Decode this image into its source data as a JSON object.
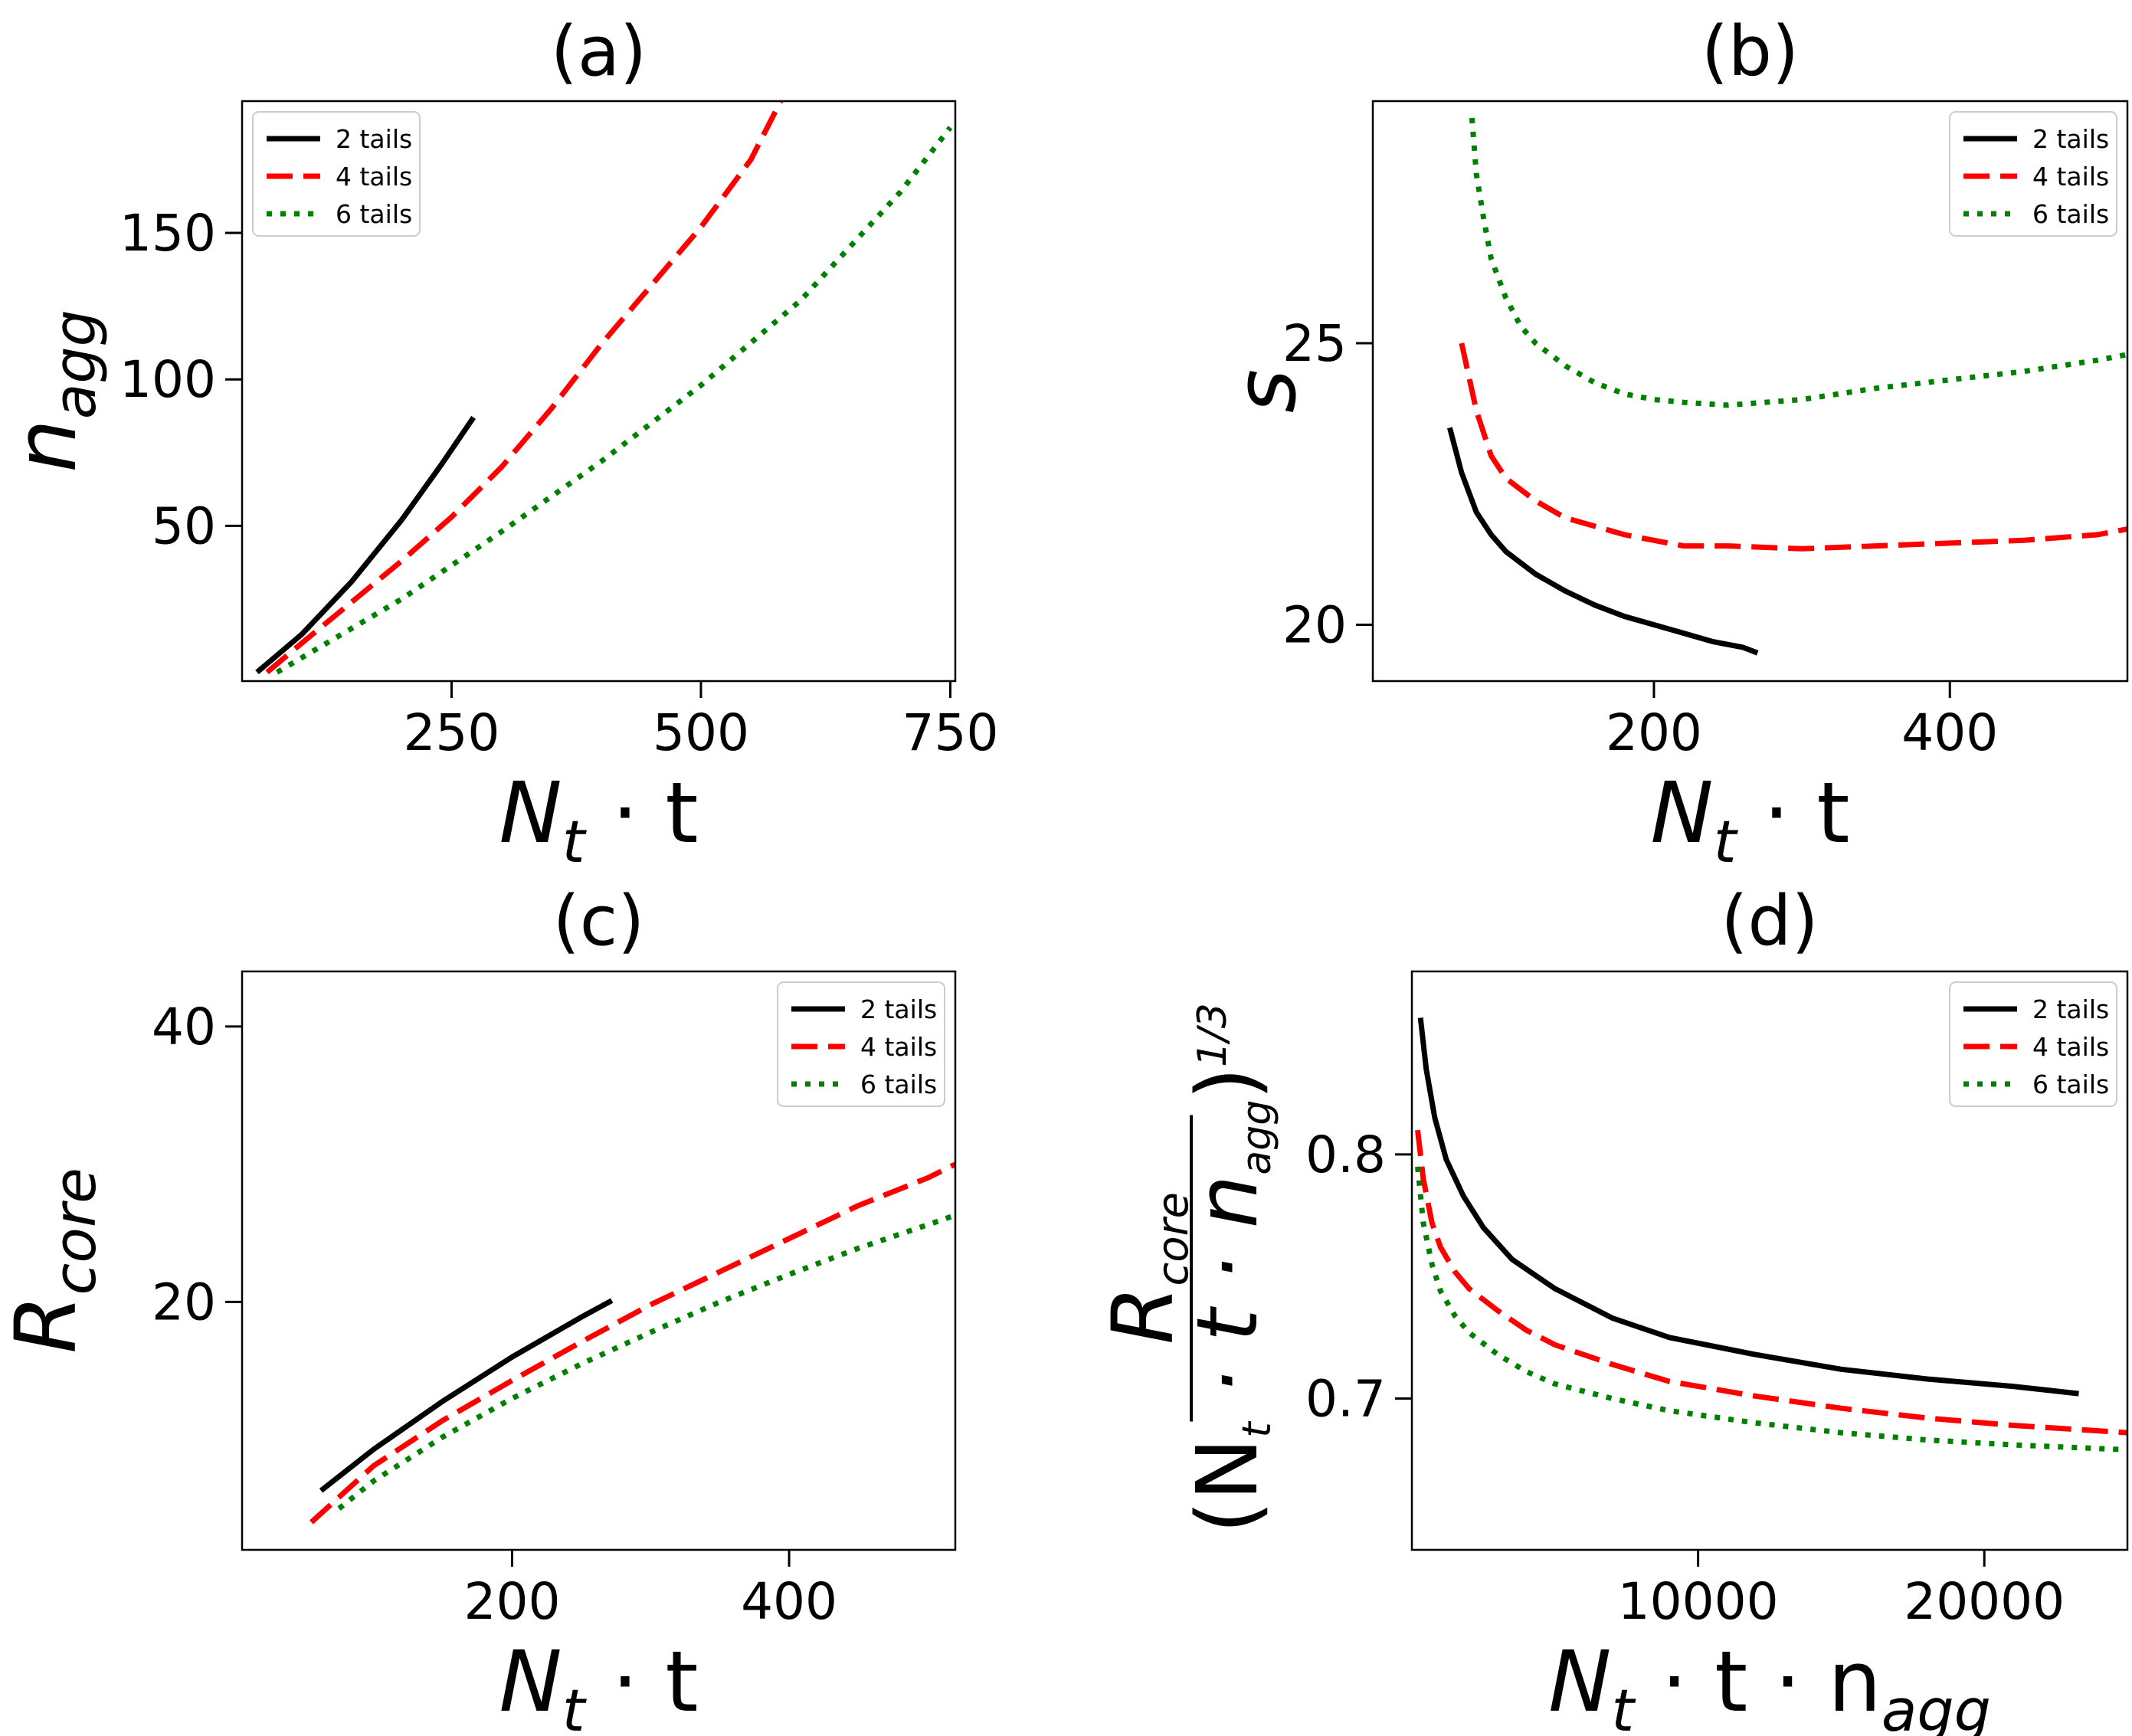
{
  "chart_data": [
    {
      "id": "a",
      "type": "line",
      "title": "(a)",
      "xlabel": {
        "main": "N",
        "sub": "t",
        "rest": " · t"
      },
      "ylabel": {
        "main": "n",
        "sub": "agg"
      },
      "xlim": [
        40,
        755
      ],
      "ylim": [
        -3,
        195
      ],
      "xticks": [
        250,
        500,
        750
      ],
      "xtick_labels": [
        "250",
        "500",
        "750"
      ],
      "yticks": [
        50,
        100,
        150
      ],
      "ytick_labels": [
        "50",
        "100",
        "150"
      ],
      "legend": {
        "position": "top-left"
      },
      "series": [
        {
          "name": "2 tails",
          "color": "#000000",
          "dash": "solid",
          "x": [
            55,
            100,
            150,
            200,
            240,
            272
          ],
          "y": [
            0,
            13,
            31,
            52,
            71,
            87
          ]
        },
        {
          "name": "4 tails",
          "color": "#ff0000",
          "dash": "dashed",
          "x": [
            65,
            100,
            150,
            200,
            250,
            300,
            350,
            400,
            450,
            500,
            550,
            580
          ],
          "y": [
            0,
            10,
            24,
            38,
            53,
            70,
            90,
            112,
            132,
            152,
            175,
            195
          ]
        },
        {
          "name": "6 tails",
          "color": "#008000",
          "dash": "dotted",
          "x": [
            75,
            150,
            200,
            300,
            400,
            500,
            600,
            700,
            750
          ],
          "y": [
            0,
            15,
            25,
            48,
            72,
            98,
            127,
            164,
            186
          ]
        }
      ]
    },
    {
      "id": "b",
      "type": "line",
      "title": "(b)",
      "xlabel": {
        "main": "N",
        "sub": "t",
        "rest": " · t"
      },
      "ylabel": {
        "main": "s",
        "sub": ""
      },
      "xlim": [
        10,
        520
      ],
      "ylim": [
        19.0,
        29.3
      ],
      "xticks": [
        200,
        400
      ],
      "xtick_labels": [
        "200",
        "400"
      ],
      "yticks": [
        20,
        25
      ],
      "ytick_labels": [
        "20",
        "25"
      ],
      "legend": {
        "position": "top-right"
      },
      "series": [
        {
          "name": "2 tails",
          "color": "#000000",
          "dash": "solid",
          "x": [
            62,
            70,
            80,
            90,
            100,
            120,
            140,
            160,
            180,
            200,
            220,
            240,
            260,
            270
          ],
          "y": [
            23.5,
            22.7,
            22.0,
            21.6,
            21.3,
            20.9,
            20.6,
            20.35,
            20.15,
            20.0,
            19.85,
            19.7,
            19.6,
            19.5
          ]
        },
        {
          "name": "4 tails",
          "color": "#ff0000",
          "dash": "dashed",
          "x": [
            70,
            80,
            90,
            100,
            120,
            140,
            160,
            180,
            200,
            220,
            250,
            300,
            350,
            400,
            450,
            500,
            520
          ],
          "y": [
            25.0,
            23.8,
            23.0,
            22.6,
            22.2,
            21.9,
            21.75,
            21.6,
            21.5,
            21.4,
            21.4,
            21.35,
            21.4,
            21.45,
            21.5,
            21.6,
            21.7
          ]
        },
        {
          "name": "6 tails",
          "color": "#008000",
          "dash": "dotted",
          "x": [
            77,
            80,
            85,
            90,
            100,
            110,
            120,
            140,
            160,
            180,
            200,
            220,
            250,
            300,
            350,
            400,
            450,
            500,
            520
          ],
          "y": [
            29.0,
            28.0,
            27.2,
            26.5,
            25.8,
            25.3,
            25.0,
            24.6,
            24.3,
            24.1,
            24.0,
            23.95,
            23.9,
            24.0,
            24.2,
            24.35,
            24.5,
            24.7,
            24.8
          ]
        }
      ]
    },
    {
      "id": "c",
      "type": "line",
      "title": "(c)",
      "xlabel": {
        "main": "N",
        "sub": "t",
        "rest": " · t"
      },
      "ylabel": {
        "main": "R",
        "sub": "core"
      },
      "xlim": [
        5,
        520
      ],
      "ylim": [
        2,
        44
      ],
      "xticks": [
        200,
        400
      ],
      "xtick_labels": [
        "200",
        "400"
      ],
      "yticks": [
        20,
        40
      ],
      "ytick_labels": [
        "20",
        "40"
      ],
      "legend": {
        "position": "top-right"
      },
      "series": [
        {
          "name": "2 tails",
          "color": "#000000",
          "dash": "solid",
          "x": [
            62,
            100,
            150,
            200,
            250,
            272
          ],
          "y": [
            6.3,
            9.3,
            12.8,
            16.0,
            18.9,
            20.1
          ]
        },
        {
          "name": "4 tails",
          "color": "#ff0000",
          "dash": "dashed",
          "x": [
            55,
            100,
            150,
            200,
            250,
            300,
            350,
            400,
            450,
            500,
            520
          ],
          "y": [
            4.0,
            8.1,
            11.4,
            14.3,
            17.1,
            19.8,
            22.2,
            24.6,
            27.0,
            29.0,
            30.0
          ]
        },
        {
          "name": "6 tails",
          "color": "#008000",
          "dash": "dotted",
          "x": [
            75,
            100,
            150,
            200,
            250,
            300,
            350,
            400,
            450,
            500,
            520
          ],
          "y": [
            5.0,
            7.0,
            10.2,
            13.0,
            15.5,
            17.8,
            20.0,
            22.0,
            23.9,
            25.6,
            26.3
          ]
        }
      ]
    },
    {
      "id": "d",
      "type": "line",
      "title": "(d)",
      "xlabel": {
        "main": "N",
        "sub": "t",
        "rest": " · t · n",
        "sub2": "agg"
      },
      "ylabel": {
        "num_main": "R",
        "num_sub": "core",
        "den": "(N",
        "den_sub": "t",
        "den_mid": " · t · n",
        "den_sub2": "agg",
        "den_end": ")",
        "power": "1/3"
      },
      "xlim": [
        0,
        25000
      ],
      "ylim": [
        0.638,
        0.875
      ],
      "xticks": [
        10000,
        20000
      ],
      "xtick_labels": [
        "10000",
        "20000"
      ],
      "yticks": [
        0.7,
        0.8
      ],
      "ytick_labels": [
        "0.7",
        "0.8"
      ],
      "legend": {
        "position": "top-right"
      },
      "series": [
        {
          "name": "2 tails",
          "color": "#000000",
          "dash": "solid",
          "x": [
            300,
            500,
            800,
            1200,
            1800,
            2500,
            3500,
            5000,
            7000,
            9000,
            12000,
            15000,
            18000,
            21000,
            23300
          ],
          "y": [
            0.856,
            0.835,
            0.815,
            0.798,
            0.783,
            0.77,
            0.757,
            0.745,
            0.733,
            0.725,
            0.718,
            0.712,
            0.708,
            0.705,
            0.702
          ]
        },
        {
          "name": "4 tails",
          "color": "#ff0000",
          "dash": "dashed",
          "x": [
            200,
            400,
            700,
            1000,
            1500,
            2000,
            3000,
            4000,
            5000,
            7000,
            9000,
            12000,
            15000,
            18000,
            21000,
            25000
          ],
          "y": [
            0.81,
            0.79,
            0.772,
            0.762,
            0.752,
            0.745,
            0.736,
            0.728,
            0.722,
            0.714,
            0.707,
            0.701,
            0.696,
            0.692,
            0.689,
            0.686
          ]
        },
        {
          "name": "6 tails",
          "color": "#008000",
          "dash": "dotted",
          "x": [
            200,
            400,
            700,
            1000,
            1500,
            2000,
            3000,
            4000,
            5000,
            7000,
            9000,
            12000,
            15000,
            18000,
            21000,
            25000
          ],
          "y": [
            0.795,
            0.772,
            0.755,
            0.744,
            0.734,
            0.727,
            0.718,
            0.711,
            0.706,
            0.7,
            0.695,
            0.69,
            0.686,
            0.683,
            0.681,
            0.679
          ]
        }
      ]
    }
  ]
}
